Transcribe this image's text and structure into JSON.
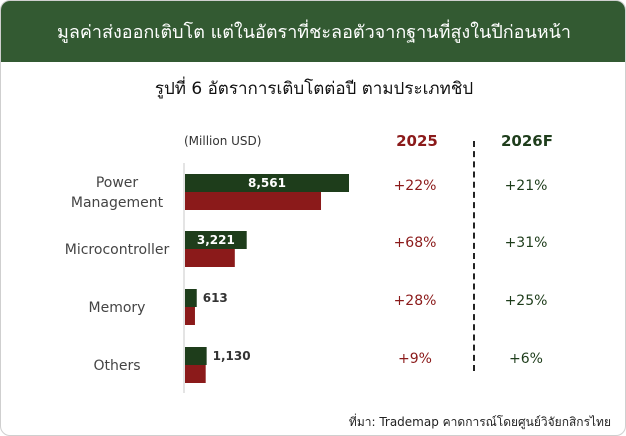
{
  "header": {
    "title": "มูลค่าส่งออกเติบโต แต่ในอัตราที่ชะลอตัวจากฐานที่สูงในปีก่อนหน้า",
    "subtitle": "รูปที่ 6 อัตราการเติบโตต่อปี ตามประเภทชิป"
  },
  "footer": {
    "source": "ที่มา: Trademap คาดการณ์โดยศูนย์วิจัยกสิกรไทย"
  },
  "colors": {
    "banner": "#335a32",
    "dark_green": "#1e3d1b",
    "dark_red": "#8b1a1a"
  },
  "chart_data": {
    "type": "bar",
    "orientation": "horizontal",
    "unit_label": "(Million USD)",
    "categories": [
      [
        "Power",
        "Management"
      ],
      [
        "Microcontroller"
      ],
      [
        "Memory"
      ],
      [
        "Others"
      ]
    ],
    "series": [
      {
        "values": [
          8561,
          3221,
          613,
          1130
        ],
        "labels": [
          "8,561",
          "3,221",
          "613",
          "1,130"
        ],
        "color": "#1e3d1b"
      },
      {
        "values": [
          7100,
          2600,
          520,
          1080
        ],
        "color": "#8b1a1a"
      }
    ],
    "growth_columns": [
      {
        "header": "2025",
        "color": "#8b1a1a",
        "values": [
          "+22%",
          "+68%",
          "+28%",
          "+9%"
        ]
      },
      {
        "header": "2026F",
        "color": "#1e3d1b",
        "values": [
          "+21%",
          "+31%",
          "+25%",
          "+6%"
        ]
      }
    ],
    "xlim": [
      0,
      8561
    ]
  }
}
